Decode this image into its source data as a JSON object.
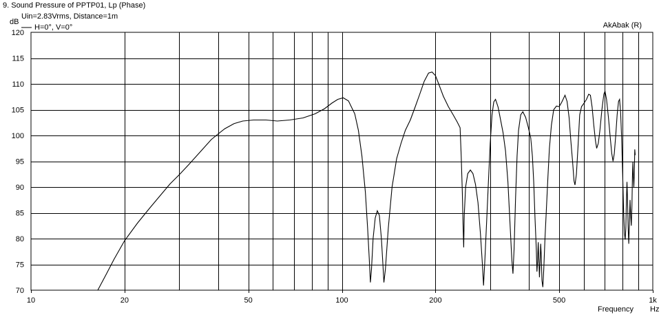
{
  "chart_data": {
    "type": "line",
    "title": "9. Sound Pressure of PPTP01, Lp (Phase)",
    "subtitle": "Uin=2.83Vrms, Distance=1m",
    "brand": "AkAbak (R)",
    "xlabel": "Frequency",
    "xunit": "Hz",
    "ylabel": "dB",
    "x_scale": "log",
    "xlim": [
      10,
      1000
    ],
    "ylim": [
      70,
      120
    ],
    "grid": true,
    "legend_position": "top-left",
    "x_ticks": [
      {
        "value": 10,
        "label": "10"
      },
      {
        "value": 20,
        "label": "20"
      },
      {
        "value": 50,
        "label": "50"
      },
      {
        "value": 100,
        "label": "100"
      },
      {
        "value": 200,
        "label": "200"
      },
      {
        "value": 500,
        "label": "500"
      },
      {
        "value": 1000,
        "label": "1k"
      }
    ],
    "y_ticks": [
      70,
      75,
      80,
      85,
      90,
      95,
      100,
      105,
      110,
      115,
      120
    ],
    "series": [
      {
        "name": "H=0°, V=0°",
        "color": "#000000",
        "points": [
          [
            16.4,
            70
          ],
          [
            17.5,
            73.2
          ],
          [
            18.5,
            76
          ],
          [
            20,
            79.6
          ],
          [
            22,
            83
          ],
          [
            24,
            85.8
          ],
          [
            26,
            88.3
          ],
          [
            28,
            90.6
          ],
          [
            30,
            92.4
          ],
          [
            32,
            94.2
          ],
          [
            35,
            96.8
          ],
          [
            38,
            99.2
          ],
          [
            40,
            100.3
          ],
          [
            42,
            101.3
          ],
          [
            45,
            102.3
          ],
          [
            48,
            102.8
          ],
          [
            52,
            103
          ],
          [
            57,
            103
          ],
          [
            62,
            102.8
          ],
          [
            68,
            103
          ],
          [
            75,
            103.4
          ],
          [
            82,
            104.2
          ],
          [
            88,
            105.2
          ],
          [
            93,
            106.3
          ],
          [
            97,
            107
          ],
          [
            101,
            107.3
          ],
          [
            105,
            106.7
          ],
          [
            110,
            104.2
          ],
          [
            113,
            101
          ],
          [
            116,
            96
          ],
          [
            119,
            89
          ],
          [
            121,
            82
          ],
          [
            122.5,
            76
          ],
          [
            123.5,
            71.5
          ],
          [
            124.5,
            74
          ],
          [
            126,
            80
          ],
          [
            128,
            84
          ],
          [
            130,
            85.4
          ],
          [
            132,
            84.5
          ],
          [
            134,
            80
          ],
          [
            135.5,
            75
          ],
          [
            136.5,
            71.5
          ],
          [
            138,
            74
          ],
          [
            141,
            82
          ],
          [
            145,
            90
          ],
          [
            150,
            95.5
          ],
          [
            155,
            98.5
          ],
          [
            160,
            101
          ],
          [
            166,
            103
          ],
          [
            172,
            105.5
          ],
          [
            178,
            108
          ],
          [
            184,
            110.5
          ],
          [
            190,
            112.1
          ],
          [
            195,
            112.3
          ],
          [
            200,
            111.6
          ],
          [
            206,
            109.6
          ],
          [
            212,
            107.6
          ],
          [
            220,
            105.6
          ],
          [
            228,
            104
          ],
          [
            235,
            102.6
          ],
          [
            240,
            101.5
          ],
          [
            242,
            96
          ],
          [
            244,
            89
          ],
          [
            245.5,
            82
          ],
          [
            246.5,
            78.3
          ],
          [
            247.5,
            84.5
          ],
          [
            250,
            90
          ],
          [
            254,
            92.6
          ],
          [
            259,
            93.3
          ],
          [
            264,
            92.6
          ],
          [
            269,
            90.5
          ],
          [
            274,
            87
          ],
          [
            279,
            81
          ],
          [
            283,
            75.2
          ],
          [
            285.5,
            70.9
          ],
          [
            288,
            75.2
          ],
          [
            292,
            83
          ],
          [
            296,
            91
          ],
          [
            300,
            98.5
          ],
          [
            304,
            104
          ],
          [
            308,
            106.5
          ],
          [
            312,
            107
          ],
          [
            318,
            105.5
          ],
          [
            324,
            103
          ],
          [
            330,
            100.5
          ],
          [
            336,
            97
          ],
          [
            342,
            91
          ],
          [
            348,
            82
          ],
          [
            352,
            76
          ],
          [
            355,
            73.2
          ],
          [
            358,
            78
          ],
          [
            362,
            88
          ],
          [
            366,
            96
          ],
          [
            370,
            101
          ],
          [
            376,
            104
          ],
          [
            382,
            104.6
          ],
          [
            390,
            103.5
          ],
          [
            398,
            101.5
          ],
          [
            405,
            99.5
          ],
          [
            410,
            96
          ],
          [
            414,
            91
          ],
          [
            418,
            84
          ],
          [
            422,
            78
          ],
          [
            424,
            73.6
          ],
          [
            426,
            75.5
          ],
          [
            428,
            79.3
          ],
          [
            430,
            76
          ],
          [
            432,
            72.5
          ],
          [
            434,
            75.5
          ],
          [
            436,
            79
          ],
          [
            438,
            76.5
          ],
          [
            440,
            71.9
          ],
          [
            443,
            70.6
          ],
          [
            446,
            74
          ],
          [
            450,
            80
          ],
          [
            455,
            86
          ],
          [
            460,
            92
          ],
          [
            465,
            97.5
          ],
          [
            472,
            102
          ],
          [
            480,
            105
          ],
          [
            490,
            105.7
          ],
          [
            500,
            105.6
          ],
          [
            510,
            106.5
          ],
          [
            522,
            107.8
          ],
          [
            530,
            106.6
          ],
          [
            538,
            103.5
          ],
          [
            545,
            99
          ],
          [
            552,
            95
          ],
          [
            558,
            91.2
          ],
          [
            562,
            90.4
          ],
          [
            568,
            92.5
          ],
          [
            575,
            98
          ],
          [
            582,
            104
          ],
          [
            590,
            105.6
          ],
          [
            600,
            106.2
          ],
          [
            612,
            107
          ],
          [
            622,
            108
          ],
          [
            630,
            107.8
          ],
          [
            638,
            105.5
          ],
          [
            646,
            102
          ],
          [
            654,
            99
          ],
          [
            660,
            97.5
          ],
          [
            668,
            98.5
          ],
          [
            676,
            101
          ],
          [
            686,
            105
          ],
          [
            696,
            108
          ],
          [
            702,
            108.6
          ],
          [
            710,
            107
          ],
          [
            720,
            103.5
          ],
          [
            730,
            99.5
          ],
          [
            738,
            96.5
          ],
          [
            745,
            95
          ],
          [
            752,
            96.5
          ],
          [
            760,
            100
          ],
          [
            768,
            104
          ],
          [
            776,
            106.6
          ],
          [
            782,
            107
          ],
          [
            788,
            104.5
          ],
          [
            794,
            99.5
          ],
          [
            800,
            92.5
          ],
          [
            806,
            85
          ],
          [
            811,
            81
          ],
          [
            815,
            79.8
          ],
          [
            819,
            82
          ],
          [
            822,
            86.5
          ],
          [
            826,
            91
          ],
          [
            829,
            88
          ],
          [
            833,
            82.5
          ],
          [
            837,
            79
          ],
          [
            841,
            83
          ],
          [
            845,
            87.5
          ],
          [
            849,
            84.5
          ],
          [
            853,
            82.5
          ],
          [
            857,
            86.5
          ],
          [
            860,
            92
          ],
          [
            863,
            94.8
          ],
          [
            866,
            92
          ],
          [
            869,
            90
          ],
          [
            872,
            92.5
          ],
          [
            875,
            97.3
          ],
          [
            878,
            96.2
          ]
        ]
      }
    ]
  }
}
